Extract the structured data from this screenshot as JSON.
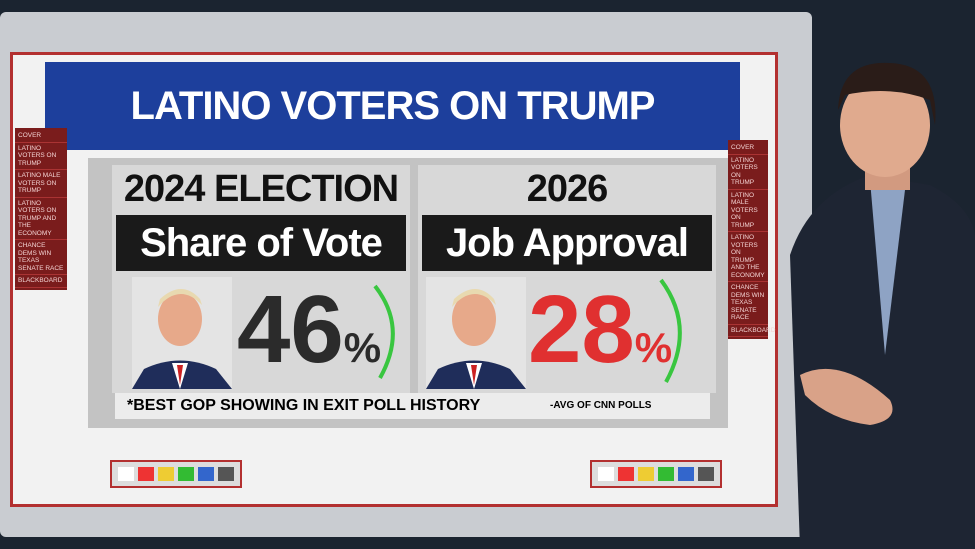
{
  "screen": {
    "title": "LATINO VOTERS ON TRUMP",
    "panels": [
      {
        "heading": "2024 ELECTION",
        "subheading": "Share of Vote",
        "value": "46",
        "unit": "%"
      },
      {
        "heading": "2026",
        "subheading": "Job Approval",
        "value": "28",
        "unit": "%"
      }
    ],
    "footnotes": [
      "*BEST GOP SHOWING IN EXIT POLL HISTORY",
      "-AVG OF CNN POLLS"
    ],
    "sidebar": [
      "COVER",
      "LATINO VOTERS ON TRUMP",
      "LATINO MALE VOTERS ON TRUMP",
      "LATINO VOTERS ON TRUMP AND THE ECONOMY",
      "CHANCE DEMS WIN TEXAS SENATE RACE",
      "BLACKBOARD"
    ]
  }
}
